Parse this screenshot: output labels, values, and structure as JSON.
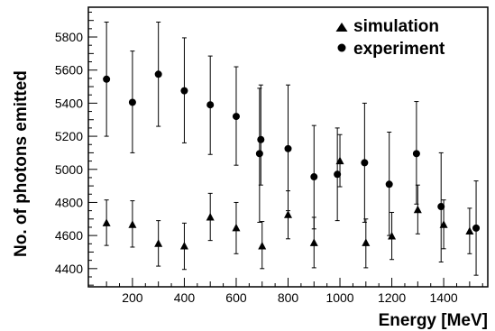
{
  "chart_data": {
    "type": "scatter",
    "title": "",
    "xlabel": "Energy [MeV]",
    "ylabel": "No. of photons emitted",
    "xlim": [
      30,
      1570
    ],
    "ylim": [
      4290,
      5980
    ],
    "xticks": [
      200,
      400,
      600,
      800,
      1000,
      1200,
      1400
    ],
    "xtick_labels": [
      "200",
      "400",
      "600",
      "800",
      "1000",
      "1200",
      "1400"
    ],
    "yticks": [
      4400,
      4600,
      4800,
      5000,
      5200,
      5400,
      5600,
      5800
    ],
    "ytick_labels": [
      "4400",
      "4600",
      "4800",
      "5000",
      "5200",
      "5400",
      "5600",
      "5800"
    ],
    "grid": false,
    "legend_position": "top-right",
    "series": [
      {
        "name": "simulation",
        "marker": "triangle",
        "color": "#000000",
        "points": [
          {
            "x": 100,
            "y": 4675,
            "lo": 4540,
            "hi": 4815
          },
          {
            "x": 200,
            "y": 4665,
            "lo": 4530,
            "hi": 4810
          },
          {
            "x": 300,
            "y": 4550,
            "lo": 4415,
            "hi": 4690
          },
          {
            "x": 400,
            "y": 4535,
            "lo": 4395,
            "hi": 4675
          },
          {
            "x": 500,
            "y": 4710,
            "lo": 4570,
            "hi": 4855
          },
          {
            "x": 600,
            "y": 4645,
            "lo": 4490,
            "hi": 4800
          },
          {
            "x": 700,
            "y": 4535,
            "lo": 4400,
            "hi": 4685
          },
          {
            "x": 800,
            "y": 4725,
            "lo": 4580,
            "hi": 4870
          },
          {
            "x": 900,
            "y": 4555,
            "lo": 4405,
            "hi": 4710
          },
          {
            "x": 1000,
            "y": 5050,
            "lo": 4895,
            "hi": 5210
          },
          {
            "x": 1100,
            "y": 4555,
            "lo": 4405,
            "hi": 4700
          },
          {
            "x": 1200,
            "y": 4595,
            "lo": 4455,
            "hi": 4740
          },
          {
            "x": 1300,
            "y": 4755,
            "lo": 4610,
            "hi": 4905
          },
          {
            "x": 1400,
            "y": 4665,
            "lo": 4520,
            "hi": 4815
          },
          {
            "x": 1500,
            "y": 4625,
            "lo": 4490,
            "hi": 4765
          }
        ]
      },
      {
        "name": "experiment",
        "marker": "circle",
        "color": "#000000",
        "points": [
          {
            "x": 100,
            "y": 5545,
            "lo": 5200,
            "hi": 5890
          },
          {
            "x": 200,
            "y": 5405,
            "lo": 5100,
            "hi": 5715
          },
          {
            "x": 300,
            "y": 5575,
            "lo": 5260,
            "hi": 5890
          },
          {
            "x": 400,
            "y": 5475,
            "lo": 5160,
            "hi": 5795
          },
          {
            "x": 500,
            "y": 5390,
            "lo": 5090,
            "hi": 5685
          },
          {
            "x": 600,
            "y": 5320,
            "lo": 5025,
            "hi": 5620
          },
          {
            "x": 690,
            "y": 5095,
            "lo": 4680,
            "hi": 5490
          },
          {
            "x": 695,
            "y": 5180,
            "lo": 4905,
            "hi": 5510
          },
          {
            "x": 800,
            "y": 5125,
            "lo": 4750,
            "hi": 5510
          },
          {
            "x": 900,
            "y": 4955,
            "lo": 4640,
            "hi": 5265
          },
          {
            "x": 990,
            "y": 4970,
            "lo": 4690,
            "hi": 5250
          },
          {
            "x": 1095,
            "y": 5040,
            "lo": 4680,
            "hi": 5400
          },
          {
            "x": 1190,
            "y": 4910,
            "lo": 4600,
            "hi": 5225
          },
          {
            "x": 1295,
            "y": 5095,
            "lo": 4790,
            "hi": 5410
          },
          {
            "x": 1390,
            "y": 4775,
            "lo": 4440,
            "hi": 5100
          },
          {
            "x": 1525,
            "y": 4645,
            "lo": 4360,
            "hi": 4930
          }
        ]
      }
    ]
  }
}
